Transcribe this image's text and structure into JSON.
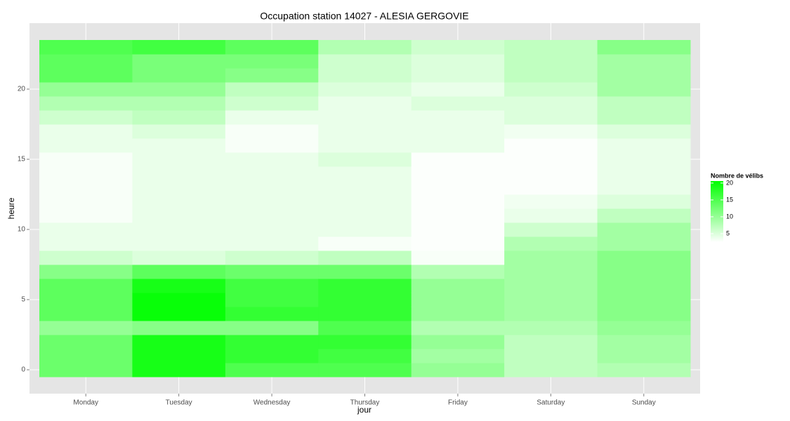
{
  "chart_data": {
    "type": "heatmap",
    "title": "Occupation station 14027 - ALESIA GERGOVIE",
    "x_label": "jour",
    "y_label": "heure",
    "categories": [
      "Monday",
      "Tuesday",
      "Wednesday",
      "Thursday",
      "Friday",
      "Saturday",
      "Sunday"
    ],
    "y": [
      0,
      1,
      2,
      3,
      4,
      5,
      6,
      7,
      8,
      9,
      10,
      11,
      12,
      13,
      14,
      15,
      16,
      17,
      18,
      19,
      20,
      21,
      22,
      23
    ],
    "values": [
      [
        13,
        13,
        13,
        10,
        14,
        14,
        14,
        11,
        6,
        4,
        4,
        3,
        3,
        3,
        3,
        3,
        4,
        4,
        6,
        8,
        10,
        14,
        14,
        15
      ],
      [
        19,
        19,
        19,
        11,
        20,
        20,
        19,
        14,
        5,
        4,
        4,
        4,
        4,
        4,
        4,
        4,
        4,
        5,
        7,
        8,
        10,
        12,
        12,
        16
      ],
      [
        15,
        17,
        17,
        11,
        17,
        16,
        16,
        13,
        6,
        4,
        4,
        4,
        4,
        4,
        4,
        4,
        3,
        3,
        4,
        6,
        7,
        11,
        12,
        14
      ],
      [
        15,
        16,
        17,
        15,
        17,
        17,
        17,
        13,
        7,
        3,
        4,
        4,
        4,
        4,
        4,
        5,
        4,
        4,
        4,
        4,
        5,
        6,
        6,
        8
      ],
      [
        10,
        9,
        10,
        8,
        10,
        10,
        10,
        8,
        3,
        2.7,
        2.7,
        2.7,
        2.7,
        2.7,
        2.7,
        2.7,
        4,
        4,
        4,
        5,
        4,
        5,
        5,
        6
      ],
      [
        7,
        7,
        7,
        8,
        9,
        9,
        9,
        9,
        9,
        8,
        6,
        4,
        3.5,
        2.7,
        2.7,
        2.7,
        2.7,
        3.5,
        5,
        5,
        6,
        7,
        7,
        7
      ],
      [
        8,
        9,
        9,
        10,
        11,
        11,
        11,
        11,
        11,
        9,
        9,
        7,
        5,
        4,
        4,
        4,
        4,
        5,
        7,
        7,
        9,
        9,
        9,
        11
      ]
    ],
    "ylim": [
      -1.7,
      24.7
    ],
    "yticks": [
      0,
      5,
      10,
      15,
      20
    ],
    "grid": true,
    "color_low": "#ffffff",
    "color_high": "#00ff00",
    "legend_title": "Nombre de vélibs",
    "color_lim": [
      2.5,
      20.6
    ],
    "legend_ticks": [
      5,
      10,
      15,
      20
    ]
  }
}
